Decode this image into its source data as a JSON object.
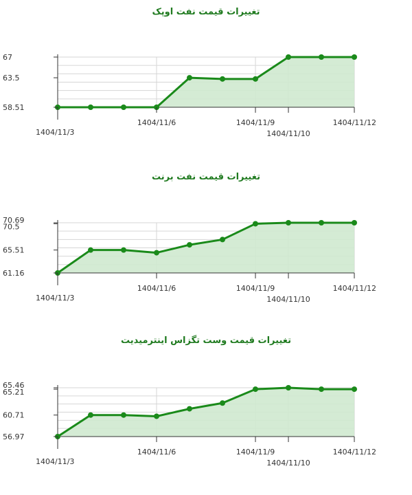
{
  "colors": {
    "line": "#1a8a1a",
    "fill": "#cfe9cf",
    "grid": "#d6d6d6",
    "axis": "#333333",
    "title": "#1f7a1f"
  },
  "chart_data": [
    {
      "type": "area",
      "title": "تغییرات قیمت نفت اوپک",
      "x": [
        "1404/11/3",
        "1404/11/4",
        "1404/11/5",
        "1404/11/6",
        "1404/11/7",
        "1404/11/8",
        "1404/11/9",
        "1404/11/10",
        "1404/11/11",
        "1404/11/12"
      ],
      "x_tick_labels": [
        "1404/11/3",
        "1404/11/6",
        "1404/11/9",
        "1404/11/10",
        "1404/11/12"
      ],
      "values": [
        58.51,
        58.51,
        58.51,
        58.51,
        63.5,
        63.3,
        63.3,
        67,
        67,
        67
      ],
      "y_tick_labels": [
        "67",
        "63.5",
        "58.51"
      ],
      "ylim": [
        58.51,
        67
      ],
      "grid": true
    },
    {
      "type": "area",
      "title": "تغییرات قیمت نفت برنت",
      "x": [
        "1404/11/3",
        "1404/11/4",
        "1404/11/5",
        "1404/11/6",
        "1404/11/7",
        "1404/11/8",
        "1404/11/9",
        "1404/11/10",
        "1404/11/11",
        "1404/11/12"
      ],
      "x_tick_labels": [
        "1404/11/3",
        "1404/11/6",
        "1404/11/9",
        "1404/11/10",
        "1404/11/12"
      ],
      "values": [
        61.16,
        65.51,
        65.51,
        65.0,
        66.5,
        67.5,
        70.5,
        70.69,
        70.69,
        70.69
      ],
      "y_tick_labels": [
        "70.69",
        "70.5",
        "65.51",
        "61.16"
      ],
      "ylim": [
        61.16,
        70.69
      ],
      "grid": true
    },
    {
      "type": "area",
      "title": "تغییرات قیمت وست تگزاس اینترمیدیت",
      "x": [
        "1404/11/3",
        "1404/11/4",
        "1404/11/5",
        "1404/11/6",
        "1404/11/7",
        "1404/11/8",
        "1404/11/9",
        "1404/11/10",
        "1404/11/11",
        "1404/11/12"
      ],
      "x_tick_labels": [
        "1404/11/3",
        "1404/11/6",
        "1404/11/9",
        "1404/11/10",
        "1404/11/12"
      ],
      "values": [
        56.97,
        60.71,
        60.71,
        60.5,
        61.8,
        62.8,
        65.21,
        65.46,
        65.21,
        65.21
      ],
      "y_tick_labels": [
        "65.46",
        "65.21",
        "60.71",
        "56.97"
      ],
      "ylim": [
        56.97,
        65.46
      ],
      "grid": true
    }
  ]
}
